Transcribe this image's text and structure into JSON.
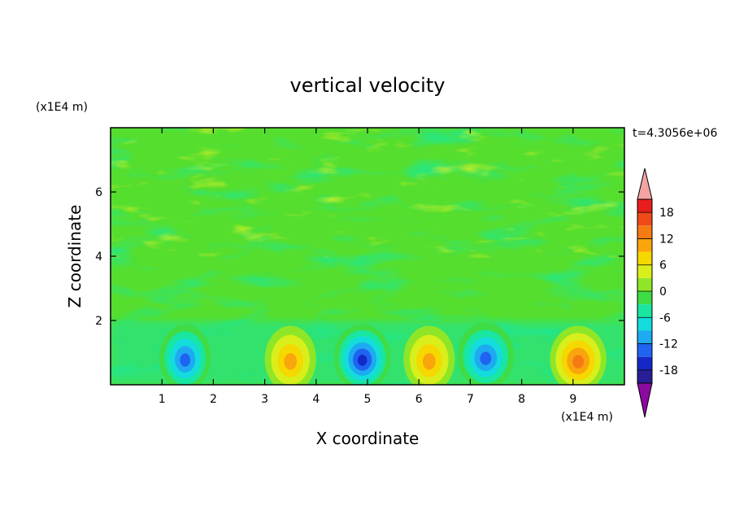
{
  "chart_data": {
    "type": "heatmap",
    "title": "vertical velocity",
    "xlabel": "X coordinate",
    "ylabel": "Z coordinate",
    "x_unit": "(x1E4 m)",
    "y_unit": "(x1E4 m)",
    "time_label": "t=4.3056e+06",
    "xlim": [
      0,
      10
    ],
    "ylim": [
      0,
      8
    ],
    "x_ticks": [
      "1",
      "2",
      "3",
      "4",
      "5",
      "6",
      "7",
      "8",
      "9"
    ],
    "y_ticks": [
      "2",
      "4",
      "6"
    ],
    "colorbar": {
      "tick_labels": [
        "18",
        "12",
        "6",
        "0",
        "-6",
        "-12",
        "-18"
      ],
      "range": [
        -21,
        21
      ],
      "levels": [
        {
          "lo": 18,
          "hi": 21,
          "color": "#e81e1e"
        },
        {
          "lo": 15,
          "hi": 18,
          "color": "#f04a1a"
        },
        {
          "lo": 12,
          "hi": 15,
          "color": "#f57a14"
        },
        {
          "lo": 9,
          "hi": 12,
          "color": "#faa50c"
        },
        {
          "lo": 6,
          "hi": 9,
          "color": "#f5d800"
        },
        {
          "lo": 3,
          "hi": 6,
          "color": "#d9ef1c"
        },
        {
          "lo": 0,
          "hi": 3,
          "color": "#8fe626"
        },
        {
          "lo": -3,
          "hi": 0,
          "color": "#3fdc46"
        },
        {
          "lo": -6,
          "hi": -3,
          "color": "#19e6a0"
        },
        {
          "lo": -9,
          "hi": -6,
          "color": "#14dcdc"
        },
        {
          "lo": -12,
          "hi": -9,
          "color": "#1eaaf0"
        },
        {
          "lo": -15,
          "hi": -12,
          "color": "#1e64f0"
        },
        {
          "lo": -18,
          "hi": -15,
          "color": "#1428c8"
        },
        {
          "lo": -21,
          "hi": -18,
          "color": "#281e96"
        }
      ],
      "over_color": "#f4a3a3",
      "under_color": "#8c0aa0"
    },
    "features": [
      {
        "x": 1.45,
        "z": 0.85,
        "value": -13
      },
      {
        "x": 3.5,
        "z": 0.8,
        "value": 12
      },
      {
        "x": 4.9,
        "z": 0.85,
        "value": -17
      },
      {
        "x": 6.2,
        "z": 0.8,
        "value": 10
      },
      {
        "x": 7.3,
        "z": 0.9,
        "value": -15
      },
      {
        "x": 9.1,
        "z": 0.8,
        "value": 14
      }
    ]
  }
}
